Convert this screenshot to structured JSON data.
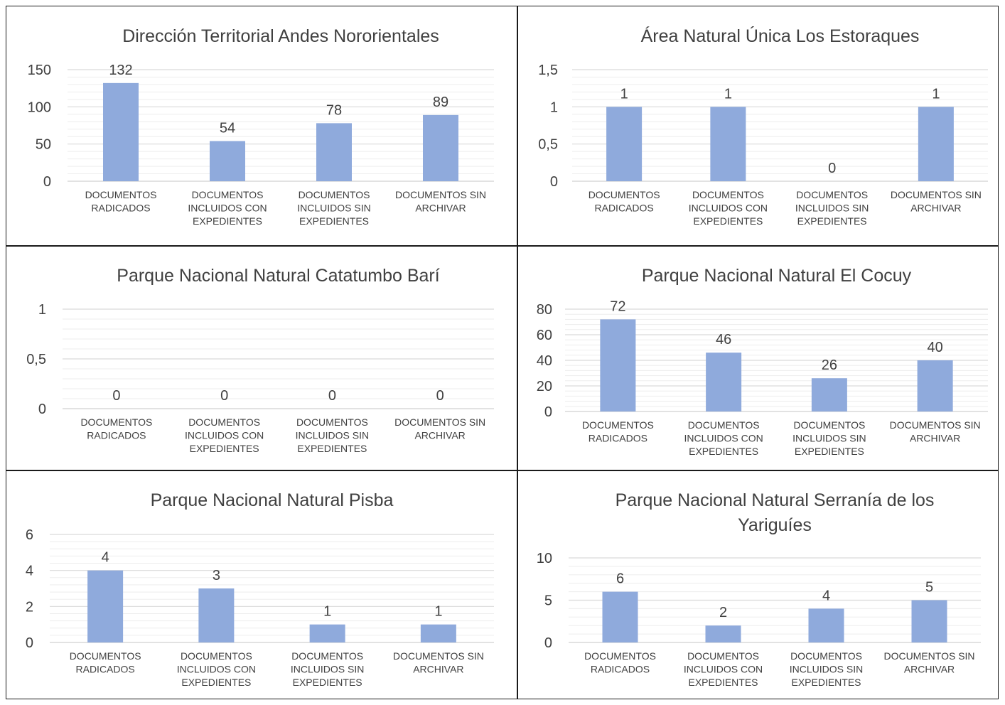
{
  "colors": {
    "bar": "#8faadc",
    "major_grid": "#d9d9d9",
    "minor_grid": "#ededed",
    "axis": "#d9d9d9",
    "text": "#404040"
  },
  "categories": [
    [
      "DOCUMENTOS",
      "RADICADOS"
    ],
    [
      "DOCUMENTOS",
      "INCLUIDOS CON",
      "EXPEDIENTES"
    ],
    [
      "DOCUMENTOS",
      "INCLUIDOS SIN",
      "EXPEDIENTES"
    ],
    [
      "DOCUMENTOS SIN",
      "ARCHIVAR"
    ]
  ],
  "chart_data": [
    {
      "type": "bar",
      "title": "Dirección Territorial Andes Nororientales",
      "categories": [
        "DOCUMENTOS RADICADOS",
        "DOCUMENTOS INCLUIDOS CON EXPEDIENTES",
        "DOCUMENTOS INCLUIDOS SIN EXPEDIENTES",
        "DOCUMENTOS SIN ARCHIVAR"
      ],
      "values": [
        132,
        54,
        78,
        89
      ],
      "ylim": [
        0,
        150
      ],
      "yticks": [
        0,
        50,
        100,
        150
      ],
      "ytick_labels": [
        "0",
        "50",
        "100",
        "150"
      ]
    },
    {
      "type": "bar",
      "title": "Área Natural Única Los Estoraques",
      "categories": [
        "DOCUMENTOS RADICADOS",
        "DOCUMENTOS INCLUIDOS CON EXPEDIENTES",
        "DOCUMENTOS INCLUIDOS SIN EXPEDIENTES",
        "DOCUMENTOS SIN ARCHIVAR"
      ],
      "values": [
        1,
        1,
        0,
        1
      ],
      "ylim": [
        0,
        1.5
      ],
      "yticks": [
        0,
        0.5,
        1,
        1.5
      ],
      "ytick_labels": [
        "0",
        "0,5",
        "1",
        "1,5"
      ]
    },
    {
      "type": "bar",
      "title": "Parque Nacional Natural Catatumbo Barí",
      "categories": [
        "DOCUMENTOS RADICADOS",
        "DOCUMENTOS INCLUIDOS CON EXPEDIENTES",
        "DOCUMENTOS INCLUIDOS SIN EXPEDIENTES",
        "DOCUMENTOS SIN ARCHIVAR"
      ],
      "values": [
        0,
        0,
        0,
        0
      ],
      "ylim": [
        0,
        1
      ],
      "yticks": [
        0,
        0.5,
        1
      ],
      "ytick_labels": [
        "0",
        "0,5",
        "1"
      ]
    },
    {
      "type": "bar",
      "title": "Parque Nacional Natural El Cocuy",
      "categories": [
        "DOCUMENTOS RADICADOS",
        "DOCUMENTOS INCLUIDOS CON EXPEDIENTES",
        "DOCUMENTOS INCLUIDOS SIN EXPEDIENTES",
        "DOCUMENTOS SIN ARCHIVAR"
      ],
      "values": [
        72,
        46,
        26,
        40
      ],
      "ylim": [
        0,
        80
      ],
      "yticks": [
        0,
        20,
        40,
        60,
        80
      ],
      "ytick_labels": [
        "0",
        "20",
        "40",
        "60",
        "80"
      ]
    },
    {
      "type": "bar",
      "title": "Parque Nacional Natural Pisba",
      "categories": [
        "DOCUMENTOS RADICADOS",
        "DOCUMENTOS INCLUIDOS CON EXPEDIENTES",
        "DOCUMENTOS INCLUIDOS SIN EXPEDIENTES",
        "DOCUMENTOS SIN ARCHIVAR"
      ],
      "values": [
        4,
        3,
        1,
        1
      ],
      "ylim": [
        0,
        6
      ],
      "yticks": [
        0,
        2,
        4,
        6
      ],
      "ytick_labels": [
        "0",
        "2",
        "4",
        "6"
      ]
    },
    {
      "type": "bar",
      "title": "Parque Nacional Natural Serranía de los Yariguíes",
      "title_lines": [
        "Parque Nacional Natural Serranía de los",
        "Yariguíes"
      ],
      "categories": [
        "DOCUMENTOS RADICADOS",
        "DOCUMENTOS INCLUIDOS CON EXPEDIENTES",
        "DOCUMENTOS INCLUIDOS SIN EXPEDIENTES",
        "DOCUMENTOS SIN ARCHIVAR"
      ],
      "values": [
        6,
        2,
        4,
        5
      ],
      "ylim": [
        0,
        10
      ],
      "yticks": [
        0,
        5,
        10
      ],
      "ytick_labels": [
        "0",
        "5",
        "10"
      ]
    }
  ]
}
